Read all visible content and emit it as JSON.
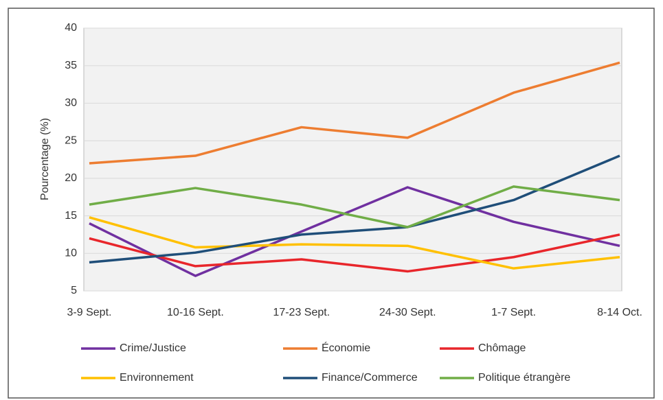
{
  "chart_data": {
    "type": "line",
    "ylabel": "Pourcentage (%)",
    "categories": [
      "3-9 Sept.",
      "10-16 Sept.",
      "17-23 Sept.",
      "24-30 Sept.",
      "1-7 Sept.",
      "8-14 Oct."
    ],
    "series": [
      {
        "name": "Crime/Justice",
        "color": "#7030a0",
        "values": [
          14.0,
          7.0,
          12.9,
          18.8,
          14.2,
          11.0
        ]
      },
      {
        "name": "Économie",
        "color": "#ed7d31",
        "values": [
          22.0,
          23.0,
          26.8,
          25.4,
          31.4,
          35.4
        ]
      },
      {
        "name": "Chômage",
        "color": "#e8262b",
        "values": [
          12.0,
          8.3,
          9.2,
          7.6,
          9.5,
          12.5
        ]
      },
      {
        "name": "Environnement",
        "color": "#ffc000",
        "values": [
          14.8,
          10.8,
          11.2,
          11.0,
          8.0,
          9.5
        ]
      },
      {
        "name": "Finance/Commerce",
        "color": "#1f4e79",
        "values": [
          8.8,
          10.1,
          12.5,
          13.5,
          17.1,
          23.0
        ]
      },
      {
        "name": "Politique étrangère",
        "color": "#70ad47",
        "values": [
          16.5,
          18.7,
          16.5,
          13.5,
          18.9,
          17.1
        ]
      }
    ],
    "ylim": [
      5,
      40
    ],
    "yticks": [
      5,
      10,
      15,
      20,
      25,
      30,
      35,
      40
    ],
    "grid": true,
    "legend": "bottom"
  }
}
